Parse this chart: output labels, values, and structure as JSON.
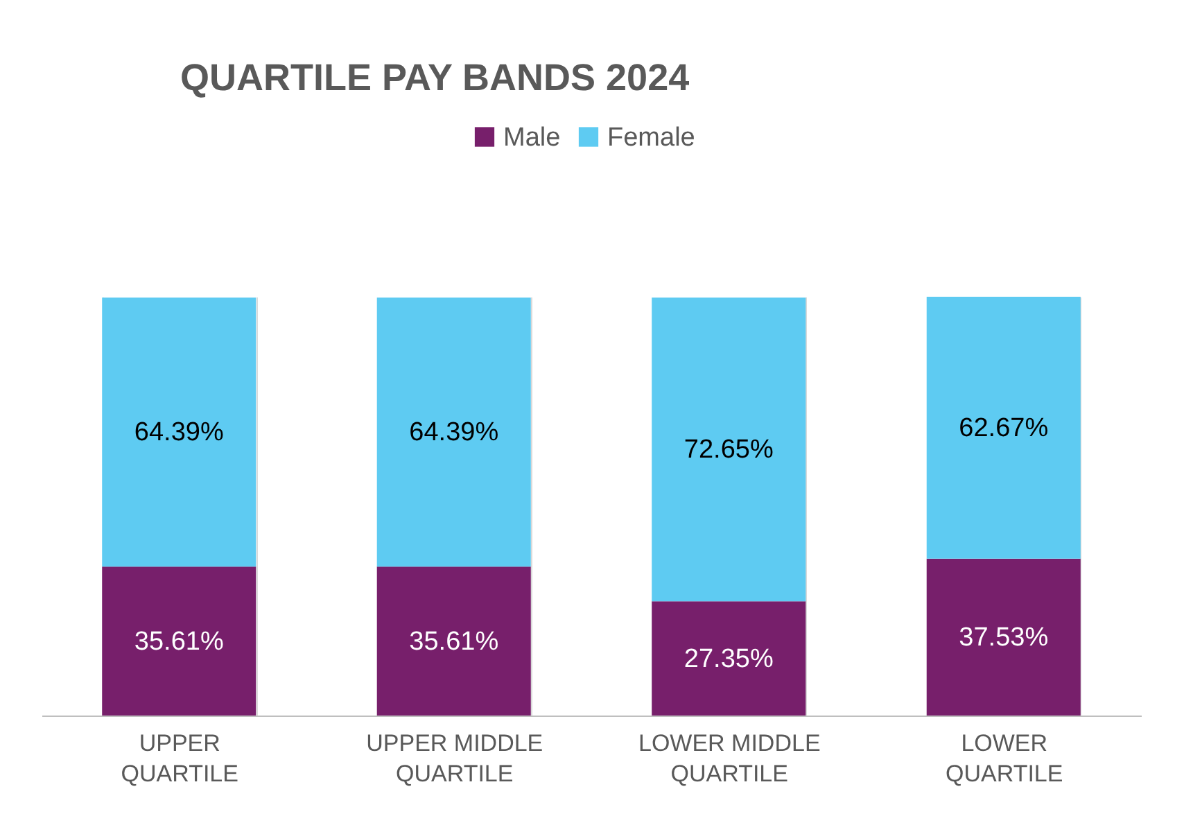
{
  "chart_data": {
    "type": "bar",
    "title": "QUARTILE PAY BANDS 2024",
    "stacked": true,
    "legend": "top",
    "grid": "x",
    "categories": [
      "UPPER QUARTILE",
      "UPPER MIDDLE QUARTILE",
      "LOWER MIDDLE QUARTILE",
      "LOWER QUARTILE"
    ],
    "series": [
      {
        "name": "Male",
        "color": "#771f6b",
        "values": [
          35.61,
          35.61,
          27.35,
          37.53
        ],
        "value_labels": [
          "35.61%",
          "35.61%",
          "27.35%",
          "37.53%"
        ]
      },
      {
        "name": "Female",
        "color": "#5ecbf2",
        "values": [
          64.39,
          64.39,
          72.65,
          62.67
        ],
        "value_labels": [
          "64.39%",
          "64.39%",
          "72.65%",
          "62.67%"
        ]
      }
    ]
  }
}
